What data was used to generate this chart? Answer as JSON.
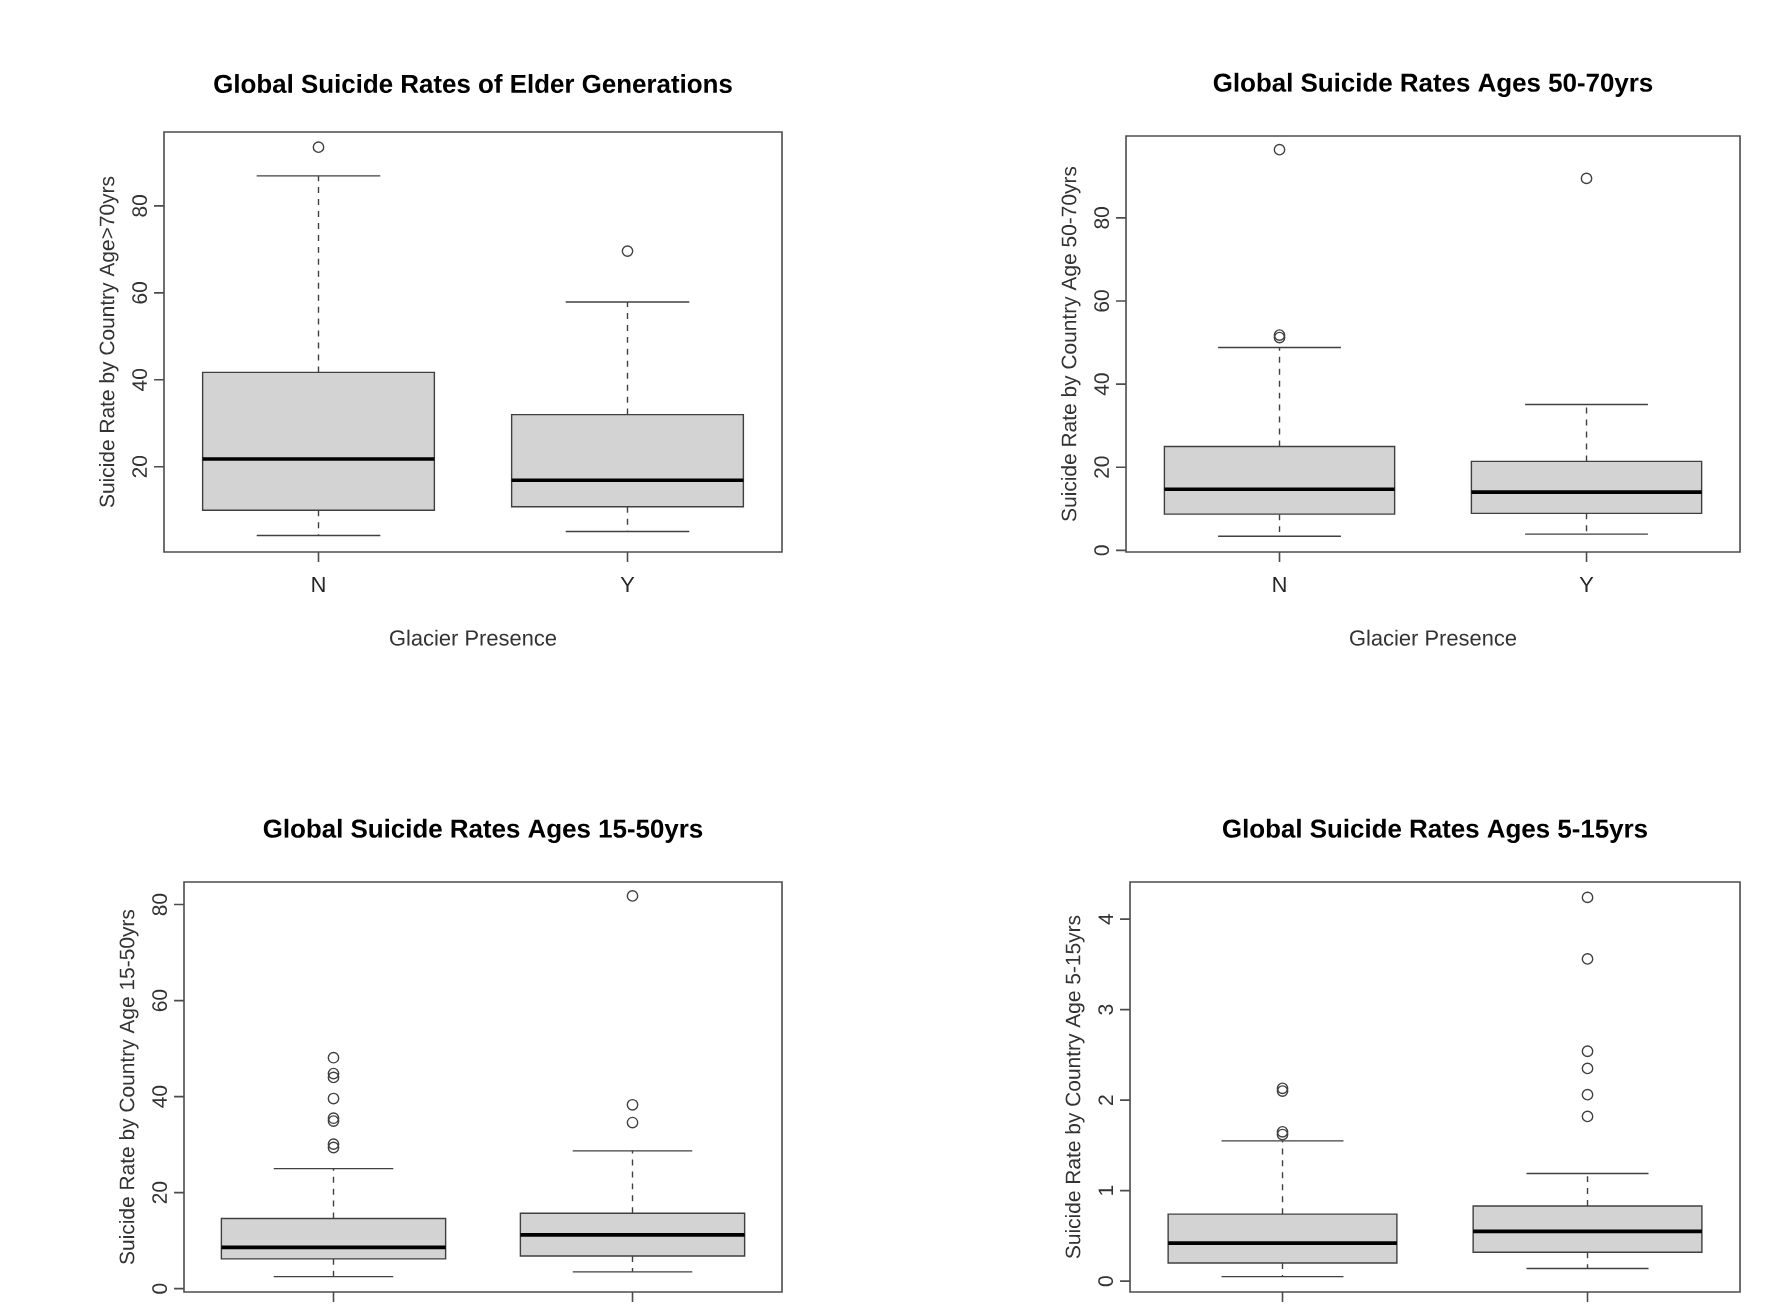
{
  "chart_data": [
    {
      "type": "box",
      "title": "Global Suicide Rates of Elder Generations",
      "xlabel": "Glacier Presence",
      "ylabel": "Suicide Rate by Country Age>70yrs",
      "categories": [
        "N",
        "Y"
      ],
      "color": "#d3d3d3",
      "ylim": [
        0.4,
        97
      ],
      "yticks": [
        20,
        40,
        60,
        80
      ],
      "boxes": [
        {
          "low": 4.2,
          "q1": 10.0,
          "median": 21.8,
          "q3": 41.7,
          "high": 86.9,
          "outliers": [
            93.5
          ]
        },
        {
          "low": 5.1,
          "q1": 10.8,
          "median": 16.9,
          "q3": 32.0,
          "high": 57.9,
          "outliers": [
            69.6
          ]
        }
      ]
    },
    {
      "type": "box",
      "title": "Global Suicide Rates Ages 50-70yrs",
      "xlabel": "Glacier Presence",
      "ylabel": "Suicide Rate by Country Age 50-70yrs",
      "categories": [
        "N",
        "Y"
      ],
      "color": "#d3d3d3",
      "ylim": [
        -0.4,
        99.7
      ],
      "yticks": [
        0,
        20,
        40,
        60,
        80
      ],
      "boxes": [
        {
          "low": 3.4,
          "q1": 8.7,
          "median": 14.7,
          "q3": 25.0,
          "high": 48.8,
          "outliers": [
            51.2,
            51.8,
            96.4
          ]
        },
        {
          "low": 3.9,
          "q1": 8.9,
          "median": 14.0,
          "q3": 21.4,
          "high": 35.1,
          "outliers": [
            89.5
          ]
        }
      ]
    },
    {
      "type": "box",
      "title": "Global Suicide Rates Ages 15-50yrs",
      "ylabel": "Suicide Rate by Country Age 15-50yrs",
      "categories": [
        null,
        null
      ],
      "tick_labels": "y",
      "color": "#d3d3d3",
      "ylim": [
        -0.7,
        84.7
      ],
      "yticks": [
        0,
        20,
        40,
        60,
        80
      ],
      "boxes": [
        {
          "low": 2.5,
          "q1": 6.2,
          "median": 8.6,
          "q3": 14.6,
          "high": 25.0,
          "outliers": [
            29.4,
            30.1,
            34.9,
            35.5,
            39.6,
            44.0,
            44.8,
            48.1
          ]
        },
        {
          "low": 3.5,
          "q1": 6.8,
          "median": 11.2,
          "q3": 15.7,
          "high": 28.7,
          "outliers": [
            34.6,
            38.3,
            81.8
          ]
        }
      ]
    },
    {
      "type": "box",
      "title": "Global Suicide Rates Ages 5-15yrs",
      "ylabel": "Suicide Rate by Country Age 5-15yrs",
      "categories": [
        null,
        null
      ],
      "tick_labels": "y",
      "color": "#d3d3d3",
      "ylim": [
        -0.12,
        4.41
      ],
      "yticks": [
        0,
        1,
        2,
        3,
        4
      ],
      "boxes": [
        {
          "low": 0.05,
          "q1": 0.2,
          "median": 0.42,
          "q3": 0.74,
          "high": 1.55,
          "outliers": [
            1.62,
            1.65,
            2.1,
            2.13
          ]
        },
        {
          "low": 0.14,
          "q1": 0.32,
          "median": 0.55,
          "q3": 0.83,
          "high": 1.19,
          "outliers": [
            1.82,
            2.06,
            2.35,
            2.54,
            3.56,
            4.24
          ]
        }
      ]
    }
  ]
}
